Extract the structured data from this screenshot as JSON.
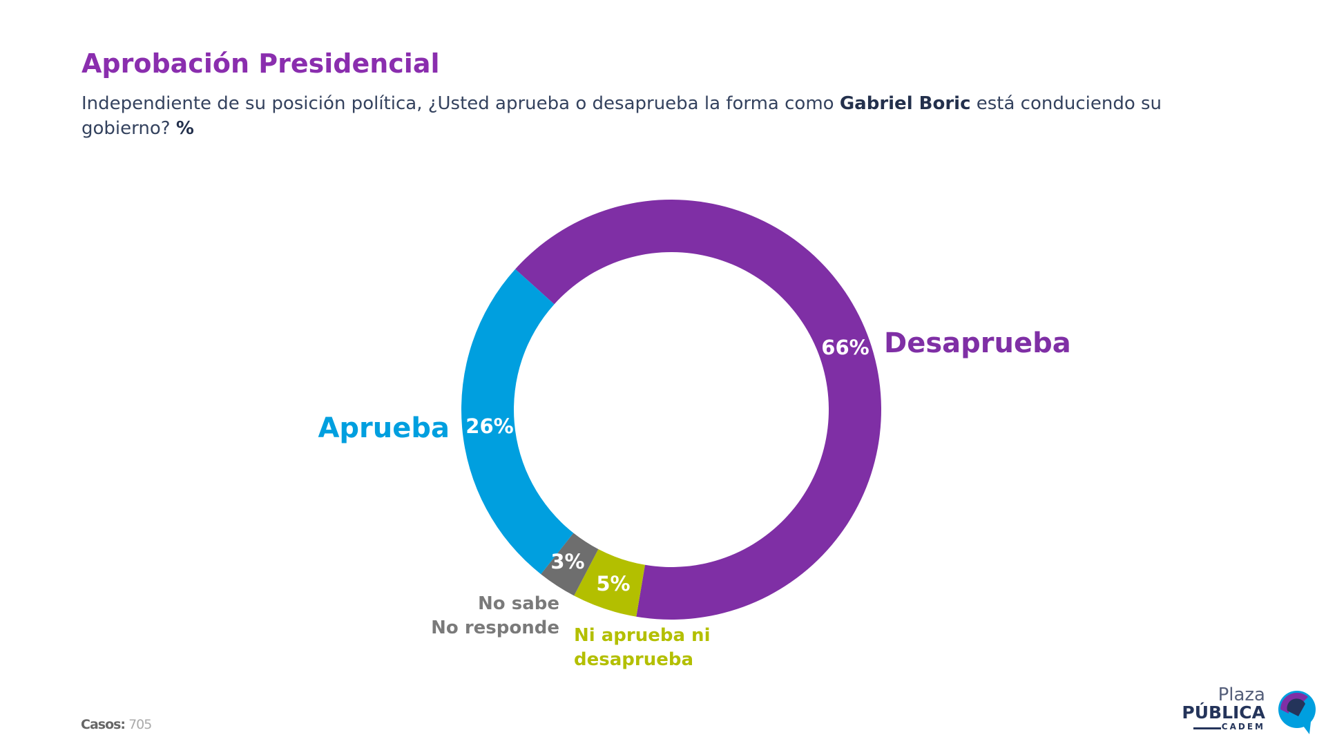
{
  "header": {
    "title": "Aprobación Presidencial",
    "subtitle_part1": "Independiente de su posición política, ¿Usted aprueba o desaprueba la forma como ",
    "subtitle_bold": "Gabriel Boric",
    "subtitle_part2": " está conduciendo su gobierno? ",
    "subtitle_unit": "%"
  },
  "chart_data": {
    "type": "pie",
    "variant": "donut",
    "slices": [
      {
        "name": "Desaprueba",
        "value": 66,
        "label": "66%",
        "color": "#7f2fa5"
      },
      {
        "name": "Ni aprueba ni desaprueba",
        "value": 5,
        "label": "5%",
        "color": "#b3bf00"
      },
      {
        "name": "No sabe No responde",
        "value": 3,
        "label": "3%",
        "color": "#6e6e6e"
      },
      {
        "name": "Aprueba",
        "value": 26,
        "label": "26%",
        "color": "#009fdf"
      }
    ],
    "category_labels": {
      "desaprueba": "Desaprueba",
      "aprueba": "Aprueba",
      "nsnr_line1": "No sabe",
      "nsnr_line2": "No responde",
      "ni_line1": "Ni aprueba ni",
      "ni_line2": "desaprueba"
    }
  },
  "footer": {
    "casos_label": "Casos:",
    "casos_value": "705",
    "logo_text": "Plaza PÚBLICA CADEM"
  }
}
